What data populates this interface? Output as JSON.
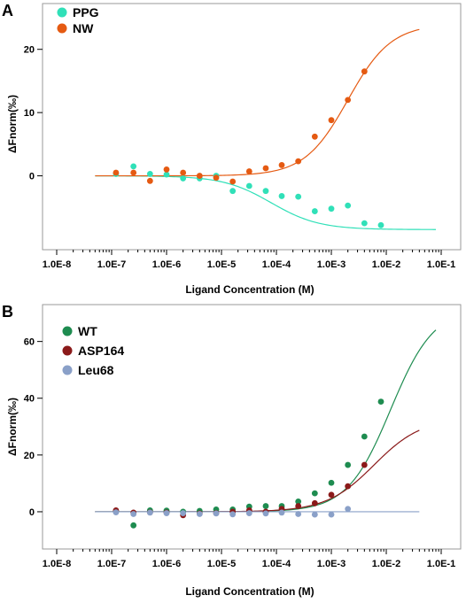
{
  "chart_data": [
    {
      "panel": "A",
      "type": "scatter",
      "xscale": "log",
      "xlim": [
        1e-08,
        0.1
      ],
      "ylim": [
        -10,
        25
      ],
      "xlabel": "Ligand Concentration (M)",
      "ylabel": "ΔFnorm(‰)",
      "xticks": [
        1e-08,
        1e-07,
        1e-06,
        1e-05,
        0.0001,
        0.001,
        0.01,
        0.1
      ],
      "xtick_labels": [
        "1.0E-8",
        "1.0E-7",
        "1.0E-6",
        "1.0E-5",
        "1.0E-4",
        "1.0E-3",
        "1.0E-2",
        "1.0E-1"
      ],
      "yticks": [
        0,
        10,
        20
      ],
      "ytick_labels": [
        "0",
        "10",
        "20"
      ],
      "legend": "top-left",
      "grid": false,
      "series": [
        {
          "name": "PPG",
          "color": "#30e0b8",
          "fit": {
            "bottom": 0,
            "top": -8.5,
            "ec50": 8e-05,
            "hill": 1.0,
            "x_start": 5e-08,
            "x_end": 0.08
          },
          "points": [
            [
              1.2e-07,
              0.3
            ],
            [
              2.5e-07,
              1.5
            ],
            [
              5e-07,
              0.3
            ],
            [
              1e-06,
              0.2
            ],
            [
              2e-06,
              -0.4
            ],
            [
              4e-06,
              -0.4
            ],
            [
              8e-06,
              0.0
            ],
            [
              1.6e-05,
              -2.4
            ],
            [
              3.2e-05,
              -1.6
            ],
            [
              6.4e-05,
              -2.4
            ],
            [
              0.000125,
              -3.2
            ],
            [
              0.00025,
              -3.3
            ],
            [
              0.0005,
              -5.6
            ],
            [
              0.001,
              -5.2
            ],
            [
              0.002,
              -4.7
            ],
            [
              0.004,
              -7.5
            ],
            [
              0.008,
              -7.8
            ]
          ]
        },
        {
          "name": "NW",
          "color": "#e55a12",
          "fit": {
            "bottom": 0,
            "top": 24,
            "ec50": 0.002,
            "hill": 1.1,
            "x_start": 5e-08,
            "x_end": 0.04
          },
          "points": [
            [
              1.2e-07,
              0.5
            ],
            [
              2.5e-07,
              0.5
            ],
            [
              5e-07,
              -0.8
            ],
            [
              1e-06,
              1.0
            ],
            [
              2e-06,
              0.5
            ],
            [
              4e-06,
              0.0
            ],
            [
              8e-06,
              -0.3
            ],
            [
              1.6e-05,
              -0.9
            ],
            [
              3.2e-05,
              0.7
            ],
            [
              6.4e-05,
              1.2
            ],
            [
              0.000125,
              1.7
            ],
            [
              0.00025,
              2.3
            ],
            [
              0.0005,
              6.2
            ],
            [
              0.001,
              8.8
            ],
            [
              0.002,
              12.0
            ],
            [
              0.004,
              16.5
            ]
          ]
        }
      ]
    },
    {
      "panel": "B",
      "type": "scatter",
      "xscale": "log",
      "xlim": [
        1e-08,
        0.1
      ],
      "ylim": [
        -10,
        68
      ],
      "xlabel": "Ligand Concentration (M)",
      "ylabel": "ΔFnorm(‰)",
      "xticks": [
        1e-08,
        1e-07,
        1e-06,
        1e-05,
        0.0001,
        0.001,
        0.01,
        0.1
      ],
      "xtick_labels": [
        "1.0E-8",
        "1.0E-7",
        "1.0E-6",
        "1.0E-5",
        "1.0E-4",
        "1.0E-3",
        "1.0E-2",
        "1.0E-1"
      ],
      "yticks": [
        0,
        20,
        40,
        60
      ],
      "ytick_labels": [
        "0",
        "20",
        "40",
        "60"
      ],
      "legend": "top-left",
      "grid": false,
      "series": [
        {
          "name": "WT",
          "color": "#1e8c50",
          "fit": {
            "bottom": 0,
            "top": 72,
            "ec50": 0.012,
            "hill": 1.1,
            "x_start": 5e-08,
            "x_end": 0.08
          },
          "points": [
            [
              1.2e-07,
              0.3
            ],
            [
              2.5e-07,
              -4.8
            ],
            [
              5e-07,
              0.5
            ],
            [
              1e-06,
              0.4
            ],
            [
              2e-06,
              0.0
            ],
            [
              4e-06,
              0.3
            ],
            [
              8e-06,
              0.8
            ],
            [
              1.6e-05,
              0.8
            ],
            [
              3.2e-05,
              1.8
            ],
            [
              6.4e-05,
              2.0
            ],
            [
              0.000125,
              2.0
            ],
            [
              0.00025,
              3.6
            ],
            [
              0.0005,
              6.5
            ],
            [
              0.001,
              10.2
            ],
            [
              0.002,
              16.5
            ],
            [
              0.004,
              26.5
            ],
            [
              0.008,
              38.8
            ]
          ]
        },
        {
          "name": "ASP164",
          "color": "#8b1a1a",
          "fit": {
            "bottom": 0,
            "top": 33,
            "ec50": 0.006,
            "hill": 1.0,
            "x_start": 5e-08,
            "x_end": 0.04
          },
          "points": [
            [
              1.2e-07,
              0.5
            ],
            [
              2.5e-07,
              -0.3
            ],
            [
              5e-07,
              -0.2
            ],
            [
              1e-06,
              -0.3
            ],
            [
              2e-06,
              -1.2
            ],
            [
              4e-06,
              -0.6
            ],
            [
              8e-06,
              -0.5
            ],
            [
              1.6e-05,
              0.0
            ],
            [
              3.2e-05,
              0.5
            ],
            [
              6.4e-05,
              0.0
            ],
            [
              0.000125,
              1.0
            ],
            [
              0.00025,
              2.0
            ],
            [
              0.0005,
              3.0
            ],
            [
              0.001,
              6.0
            ],
            [
              0.002,
              9.0
            ],
            [
              0.004,
              16.5
            ]
          ]
        },
        {
          "name": "Leu68",
          "color": "#8aa0c8",
          "fit": {
            "bottom": 0,
            "top": 0,
            "ec50": 0.001,
            "hill": 1.0,
            "x_start": 5e-08,
            "x_end": 0.04
          },
          "points": [
            [
              1.2e-07,
              -0.2
            ],
            [
              2.5e-07,
              -0.8
            ],
            [
              5e-07,
              -0.3
            ],
            [
              1e-06,
              -0.5
            ],
            [
              2e-06,
              -0.5
            ],
            [
              4e-06,
              -0.8
            ],
            [
              8e-06,
              -0.6
            ],
            [
              1.6e-05,
              -0.9
            ],
            [
              3.2e-05,
              -0.5
            ],
            [
              6.4e-05,
              -0.6
            ],
            [
              0.000125,
              -0.3
            ],
            [
              0.00025,
              -0.8
            ],
            [
              0.0005,
              -1.0
            ],
            [
              0.001,
              -1.0
            ],
            [
              0.002,
              1.0
            ]
          ]
        }
      ]
    }
  ]
}
